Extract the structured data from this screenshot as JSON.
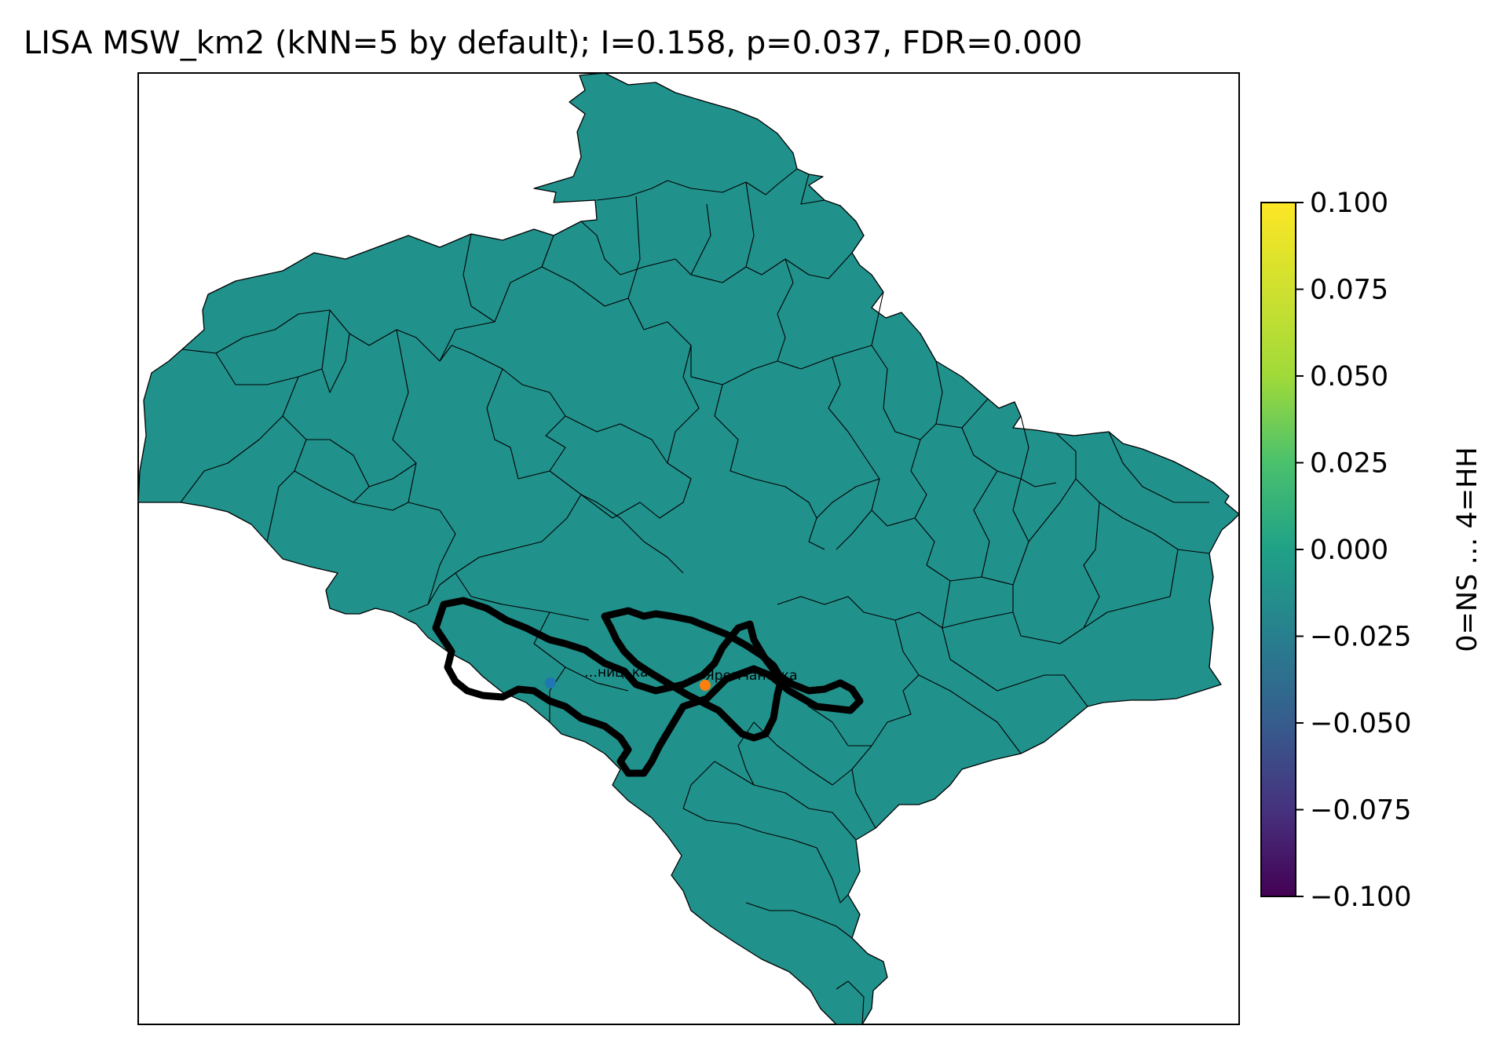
{
  "figure": {
    "title": "LISA MSW_km2 (kNN=5 by default); I=0.158, p=0.037, FDR=0.000"
  },
  "chart_data": {
    "type": "choropleth-map",
    "title": "LISA MSW_km2 (kNN=5 by default); I=0.158, p=0.037, FDR=0.000",
    "colorbar": {
      "label": "0=NS … 4=HH",
      "colormap": "viridis",
      "range": [
        -0.1,
        0.1
      ],
      "ticks": [
        "0.100",
        "0.075",
        "0.050",
        "0.025",
        "0.000",
        "−0.025",
        "−0.050",
        "−0.075",
        "−0.100"
      ]
    },
    "fill_value": 0.0,
    "fill_color": "#21918c",
    "points": [
      {
        "label": "…ницька",
        "color": "#1f77b4"
      },
      {
        "label": "Яремчанська",
        "color": "#ff7f0e"
      }
    ]
  }
}
